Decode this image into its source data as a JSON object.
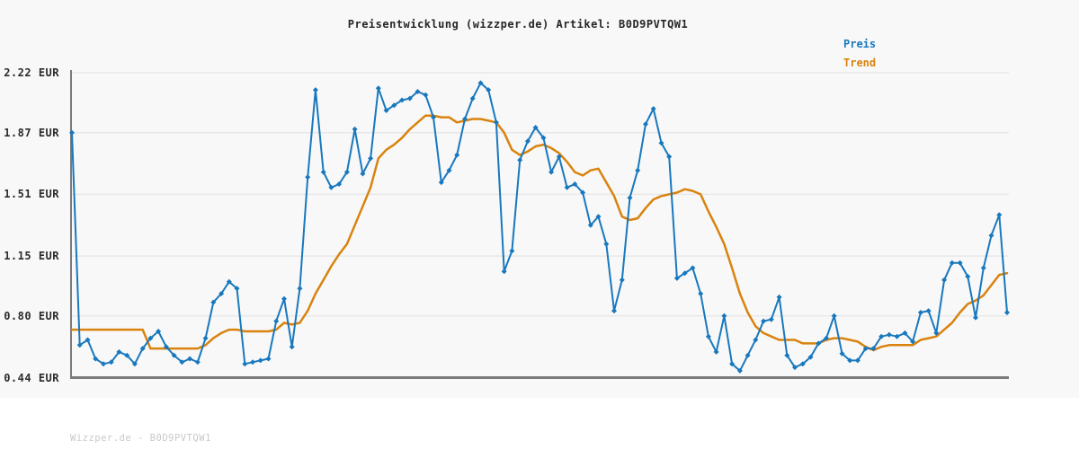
{
  "title": "Preisentwicklung (wizzper.de) Artikel: B0D9PVTQW1",
  "footer": "Wizzper.de - B0D9PVTQW1",
  "colors": {
    "price": "#1878be",
    "trend": "#d9830e",
    "background": "#f8f8f8",
    "gridline": "#e8e8e8",
    "axis": "#7a7a7a",
    "title_text": "#262626",
    "footer_text": "#c9c9c9"
  },
  "chart_data": {
    "type": "line",
    "title": "Preisentwicklung (wizzper.de) Artikel: B0D9PVTQW1",
    "xlabel": "",
    "ylabel": "EUR",
    "ylim": [
      0.44,
      2.22
    ],
    "grid": true,
    "legend_position": "top-right",
    "x_tick_labels": [],
    "y_ticks": [
      {
        "label": "2.22 EUR",
        "value": 2.22
      },
      {
        "label": "1.87 EUR",
        "value": 1.87
      },
      {
        "label": "1.51 EUR",
        "value": 1.51
      },
      {
        "label": "1.15 EUR",
        "value": 1.15
      },
      {
        "label": "0.80 EUR",
        "value": 0.8
      },
      {
        "label": "0.44 EUR",
        "value": 0.44
      }
    ],
    "series": [
      {
        "name": "Preis",
        "color": "#1878be",
        "marker": "diamond",
        "values": [
          1.87,
          0.63,
          0.66,
          0.55,
          0.52,
          0.53,
          0.59,
          0.57,
          0.52,
          0.61,
          0.67,
          0.71,
          0.62,
          0.57,
          0.53,
          0.55,
          0.53,
          0.67,
          0.88,
          0.93,
          1.0,
          0.96,
          0.52,
          0.53,
          0.54,
          0.55,
          0.77,
          0.9,
          0.62,
          0.96,
          1.61,
          2.12,
          1.64,
          1.55,
          1.57,
          1.64,
          1.89,
          1.63,
          1.72,
          2.13,
          2.0,
          2.03,
          2.06,
          2.07,
          2.11,
          2.09,
          1.96,
          1.58,
          1.65,
          1.74,
          1.95,
          2.07,
          2.16,
          2.12,
          1.93,
          1.06,
          1.18,
          1.71,
          1.82,
          1.9,
          1.84,
          1.64,
          1.73,
          1.55,
          1.57,
          1.52,
          1.33,
          1.38,
          1.22,
          0.83,
          1.01,
          1.49,
          1.65,
          1.92,
          2.01,
          1.81,
          1.73,
          1.02,
          1.05,
          1.08,
          0.93,
          0.68,
          0.59,
          0.8,
          0.52,
          0.48,
          0.57,
          0.66,
          0.77,
          0.78,
          0.91,
          0.57,
          0.5,
          0.52,
          0.56,
          0.64,
          0.67,
          0.8,
          0.58,
          0.54,
          0.54,
          0.61,
          0.61,
          0.68,
          0.69,
          0.68,
          0.7,
          0.65,
          0.82,
          0.83,
          0.7,
          1.01,
          1.11,
          1.11,
          1.03,
          0.79,
          1.08,
          1.27,
          1.39,
          0.82
        ]
      },
      {
        "name": "Trend",
        "color": "#d9830e",
        "marker": "none",
        "values": [
          0.72,
          0.72,
          0.72,
          0.72,
          0.72,
          0.72,
          0.72,
          0.72,
          0.72,
          0.72,
          0.61,
          0.61,
          0.61,
          0.61,
          0.61,
          0.61,
          0.61,
          0.63,
          0.67,
          0.7,
          0.72,
          0.72,
          0.71,
          0.71,
          0.71,
          0.71,
          0.72,
          0.76,
          0.75,
          0.76,
          0.83,
          0.93,
          1.01,
          1.09,
          1.16,
          1.22,
          1.33,
          1.44,
          1.55,
          1.72,
          1.77,
          1.8,
          1.84,
          1.89,
          1.93,
          1.97,
          1.97,
          1.96,
          1.96,
          1.93,
          1.94,
          1.95,
          1.95,
          1.94,
          1.93,
          1.87,
          1.77,
          1.74,
          1.76,
          1.79,
          1.8,
          1.78,
          1.75,
          1.7,
          1.64,
          1.62,
          1.65,
          1.66,
          1.58,
          1.5,
          1.38,
          1.36,
          1.37,
          1.43,
          1.48,
          1.5,
          1.51,
          1.52,
          1.54,
          1.53,
          1.51,
          1.41,
          1.32,
          1.22,
          1.08,
          0.93,
          0.82,
          0.74,
          0.7,
          0.68,
          0.66,
          0.66,
          0.66,
          0.64,
          0.64,
          0.64,
          0.66,
          0.67,
          0.67,
          0.66,
          0.65,
          0.62,
          0.6,
          0.62,
          0.63,
          0.63,
          0.63,
          0.63,
          0.66,
          0.67,
          0.68,
          0.72,
          0.76,
          0.82,
          0.87,
          0.89,
          0.92,
          0.98,
          1.04,
          1.05
        ]
      }
    ]
  }
}
